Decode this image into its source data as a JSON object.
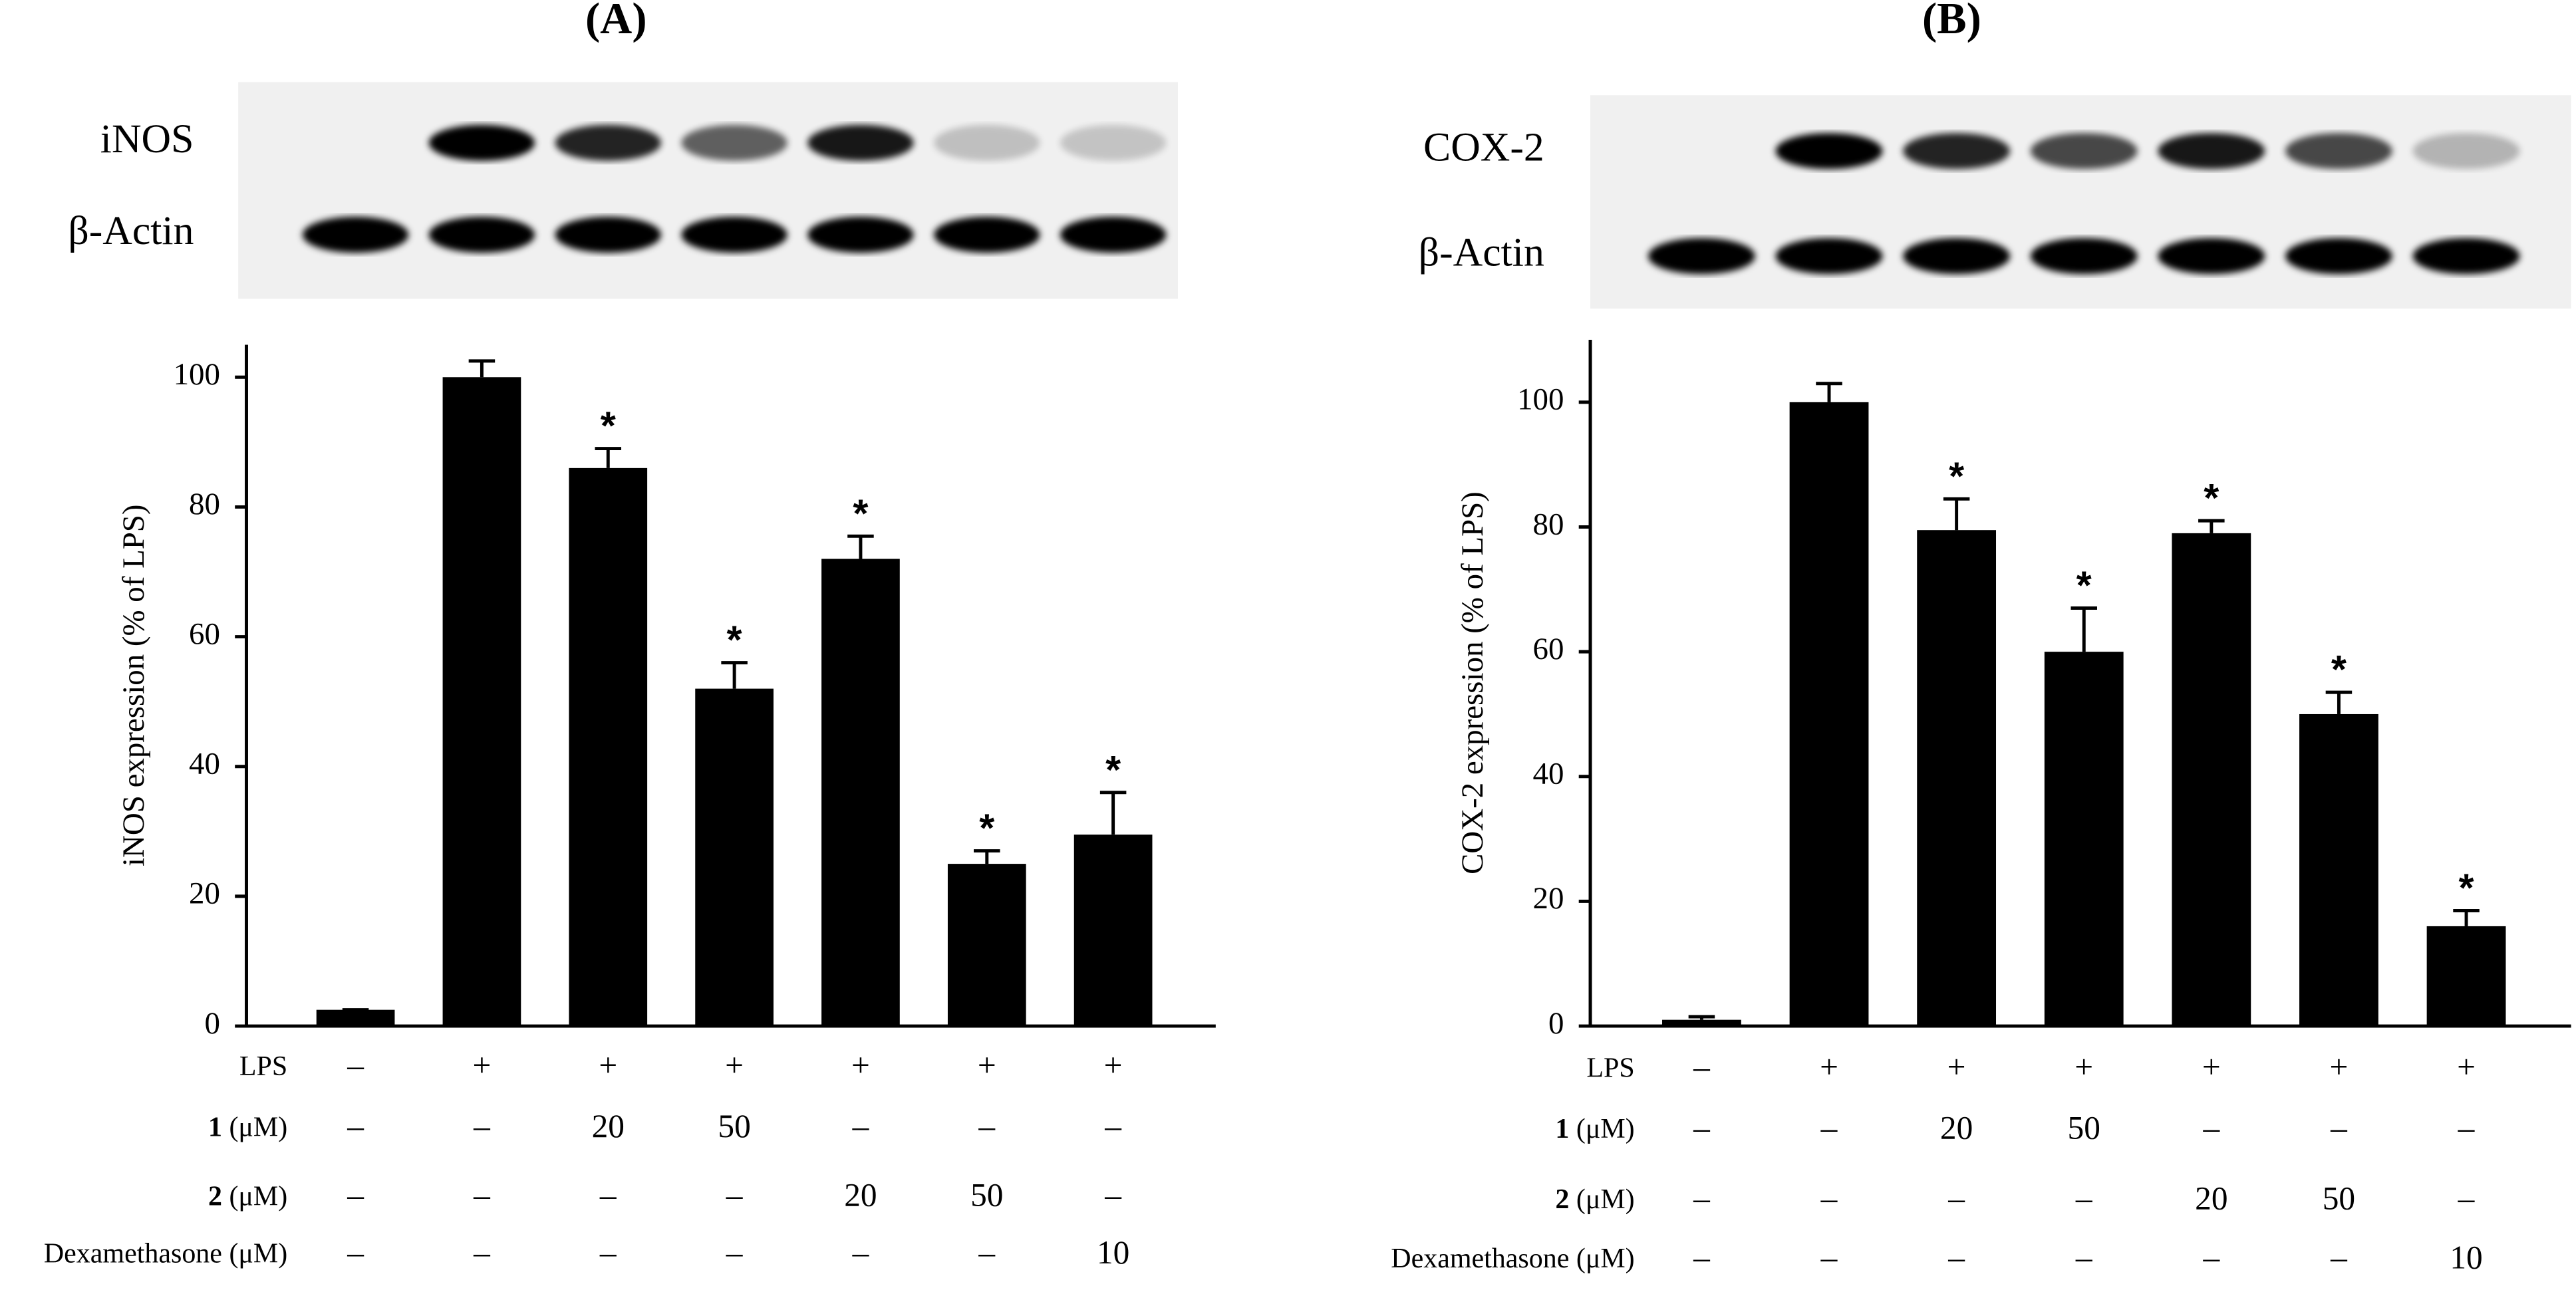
{
  "chart_data": [
    {
      "type": "bar",
      "title": "(A)",
      "blot_labels": [
        "iNOS",
        "β-Actin"
      ],
      "y_label": "iNOS expression (% of LPS)",
      "categories": [
        null,
        null,
        null,
        null,
        null,
        null,
        null
      ],
      "values": [
        2.5,
        100,
        86,
        52,
        72,
        25,
        29.5
      ],
      "errors": [
        0,
        2.5,
        3,
        4,
        3.5,
        2,
        6.5
      ],
      "significant": [
        false,
        false,
        true,
        true,
        true,
        true,
        true
      ],
      "significance_marker": "*",
      "color": "#000000",
      "ylim": [
        0,
        105
      ],
      "yticks": [
        0,
        20,
        40,
        60,
        80,
        100
      ],
      "treatments": [
        {
          "label": "LPS",
          "cells": [
            "–",
            "+",
            "+",
            "+",
            "+",
            "+",
            "+"
          ]
        },
        {
          "label": "1",
          "unit": "(μM)",
          "cells": [
            "–",
            "–",
            "20",
            "50",
            "–",
            "–",
            "–"
          ]
        },
        {
          "label": "2",
          "unit": "(μM)",
          "cells": [
            "–",
            "–",
            "–",
            "–",
            "20",
            "50",
            "–"
          ]
        },
        {
          "label": "Dexamethasone",
          "unit": "(μM)",
          "cells": [
            "–",
            "–",
            "–",
            "–",
            "–",
            "–",
            "10"
          ]
        }
      ]
    },
    {
      "type": "bar",
      "title": "(B)",
      "blot_labels": [
        "COX-2",
        "β-Actin"
      ],
      "y_label": "COX-2 expression (% of LPS)",
      "categories": [
        null,
        null,
        null,
        null,
        null,
        null,
        null
      ],
      "values": [
        1,
        100,
        79.5,
        60,
        79,
        50,
        16
      ],
      "errors": [
        0.5,
        3,
        5,
        7,
        2,
        3.5,
        2.5
      ],
      "significant": [
        false,
        false,
        true,
        true,
        true,
        true,
        true
      ],
      "significance_marker": "*",
      "color": "#000000",
      "ylim": [
        0,
        110
      ],
      "yticks": [
        0,
        20,
        40,
        60,
        80,
        100
      ],
      "treatments": [
        {
          "label": "LPS",
          "cells": [
            "–",
            "+",
            "+",
            "+",
            "+",
            "+",
            "+"
          ]
        },
        {
          "label": "1",
          "unit": "(μM)",
          "cells": [
            "–",
            "–",
            "20",
            "50",
            "–",
            "–",
            "–"
          ]
        },
        {
          "label": "2",
          "unit": "(μM)",
          "cells": [
            "–",
            "–",
            "–",
            "–",
            "20",
            "50",
            "–"
          ]
        },
        {
          "label": "Dexamethasone",
          "unit": "(μM)",
          "cells": [
            "–",
            "–",
            "–",
            "–",
            "–",
            "–",
            "10"
          ]
        }
      ]
    }
  ]
}
